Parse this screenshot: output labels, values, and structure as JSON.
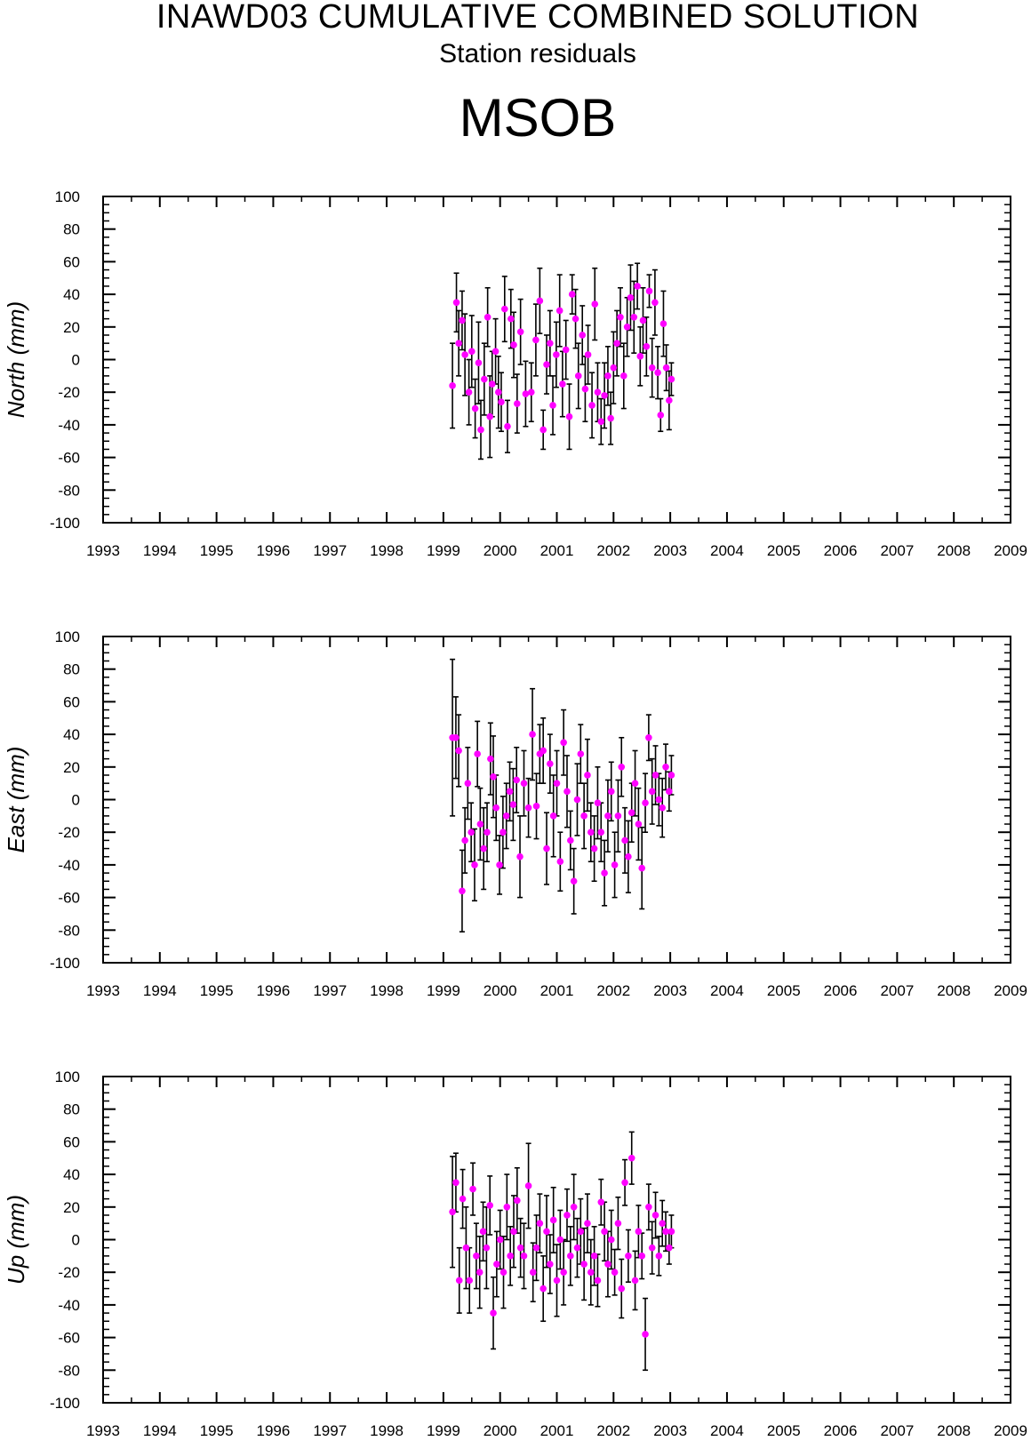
{
  "header": {
    "title": "INAWD03 CUMULATIVE COMBINED SOLUTION",
    "subtitle": "Station residuals",
    "station": "MSOB"
  },
  "colors": {
    "marker": "#ff00ff",
    "error_bar": "#000000",
    "axes": "#000000"
  },
  "chart_data": [
    {
      "type": "scatter",
      "ylabel": "North (mm)",
      "xlim": [
        1993,
        2009
      ],
      "ylim": [
        -100,
        100
      ],
      "xticks": [
        "1993",
        "1994",
        "1995",
        "1996",
        "1997",
        "1998",
        "1999",
        "2000",
        "2001",
        "2002",
        "2003",
        "2004",
        "2005",
        "2006",
        "2007",
        "2008",
        "2009"
      ],
      "yticks": [
        "-100",
        "-80",
        "-60",
        "-40",
        "-20",
        "0",
        "20",
        "40",
        "60",
        "80",
        "100"
      ],
      "series": [
        {
          "x": [
            1999.16,
            1999.23,
            1999.27,
            1999.33,
            1999.38,
            1999.45,
            1999.5,
            1999.56,
            1999.62,
            1999.66,
            1999.72,
            1999.78,
            1999.82,
            1999.86,
            1999.92,
            1999.97,
            2000.02,
            2000.08,
            2000.13,
            2000.19,
            2000.24,
            2000.3,
            2000.36,
            2000.45,
            2000.55,
            2000.63,
            2000.7,
            2000.76,
            2000.82,
            2000.88,
            2000.93,
            2000.99,
            2001.05,
            2001.1,
            2001.16,
            2001.22,
            2001.27,
            2001.33,
            2001.38,
            2001.45,
            2001.5,
            2001.55,
            2001.62,
            2001.67,
            2001.72,
            2001.78,
            2001.84,
            2001.9,
            2001.95,
            2002.0,
            2002.06,
            2002.12,
            2002.18,
            2002.24,
            2002.3,
            2002.36,
            2002.42,
            2002.47,
            2002.52,
            2002.58,
            2002.63,
            2002.68,
            2002.73,
            2002.78,
            2002.83,
            2002.88,
            2002.93,
            2002.98,
            2003.02
          ],
          "y": [
            -16,
            35,
            10,
            24,
            3,
            -20,
            5,
            -30,
            -2,
            -43,
            -12,
            26,
            -35,
            -15,
            5,
            -20,
            -26,
            31,
            -41,
            25,
            9,
            -27,
            17,
            -21,
            -20,
            12,
            36,
            -43,
            -3,
            10,
            -28,
            3,
            30,
            -15,
            6,
            -35,
            40,
            25,
            -10,
            15,
            -18,
            3,
            -28,
            34,
            -20,
            -38,
            -22,
            -10,
            -36,
            -5,
            10,
            26,
            -10,
            20,
            38,
            26,
            45,
            2,
            24,
            8,
            42,
            -5,
            35,
            -8,
            -34,
            22,
            -5,
            -25,
            -12
          ],
          "err": [
            26,
            18,
            20,
            18,
            25,
            20,
            22,
            18,
            25,
            18,
            22,
            18,
            25,
            20,
            20,
            22,
            18,
            20,
            16,
            18,
            20,
            18,
            20,
            20,
            18,
            22,
            20,
            12,
            18,
            20,
            18,
            20,
            22,
            20,
            18,
            20,
            12,
            18,
            20,
            18,
            20,
            18,
            20,
            22,
            18,
            14,
            20,
            18,
            16,
            22,
            20,
            18,
            20,
            18,
            20,
            22,
            14,
            18,
            20,
            18,
            10,
            18,
            20,
            16,
            10,
            20,
            14,
            18,
            10
          ]
        }
      ]
    },
    {
      "type": "scatter",
      "ylabel": "East (mm)",
      "xlim": [
        1993,
        2009
      ],
      "ylim": [
        -100,
        100
      ],
      "xticks": [
        "1993",
        "1994",
        "1995",
        "1996",
        "1997",
        "1998",
        "1999",
        "2000",
        "2001",
        "2002",
        "2003",
        "2004",
        "2005",
        "2006",
        "2007",
        "2008",
        "2009"
      ],
      "yticks": [
        "-100",
        "-80",
        "-60",
        "-40",
        "-20",
        "0",
        "20",
        "40",
        "60",
        "80",
        "100"
      ],
      "series": [
        {
          "x": [
            1999.16,
            1999.22,
            1999.27,
            1999.33,
            1999.38,
            1999.43,
            1999.49,
            1999.55,
            1999.6,
            1999.65,
            1999.71,
            1999.77,
            1999.83,
            1999.88,
            1999.93,
            1999.99,
            2000.05,
            2000.11,
            2000.17,
            2000.23,
            2000.29,
            2000.35,
            2000.42,
            2000.5,
            2000.57,
            2000.64,
            2000.7,
            2000.76,
            2000.82,
            2000.88,
            2000.94,
            2001.0,
            2001.06,
            2001.12,
            2001.18,
            2001.24,
            2001.3,
            2001.36,
            2001.42,
            2001.48,
            2001.54,
            2001.6,
            2001.66,
            2001.72,
            2001.78,
            2001.84,
            2001.9,
            2001.96,
            2002.02,
            2002.08,
            2002.14,
            2002.2,
            2002.26,
            2002.32,
            2002.38,
            2002.44,
            2002.5,
            2002.56,
            2002.62,
            2002.68,
            2002.74,
            2002.8,
            2002.86,
            2002.92,
            2002.98,
            2003.02
          ],
          "y": [
            38,
            38,
            30,
            -56,
            -25,
            10,
            -20,
            -40,
            28,
            -15,
            -30,
            -20,
            25,
            14,
            -5,
            -40,
            -20,
            -10,
            5,
            -3,
            12,
            -35,
            10,
            -5,
            40,
            -4,
            28,
            30,
            -30,
            22,
            -10,
            10,
            -38,
            35,
            5,
            -25,
            -50,
            0,
            28,
            -10,
            15,
            -20,
            -30,
            -2,
            -20,
            -45,
            -10,
            5,
            -40,
            -10,
            20,
            -25,
            -35,
            -8,
            10,
            -15,
            -42,
            -2,
            38,
            5,
            15,
            0,
            -5,
            20,
            5,
            15
          ],
          "err": [
            48,
            25,
            22,
            25,
            20,
            22,
            18,
            22,
            20,
            22,
            25,
            18,
            22,
            25,
            20,
            18,
            22,
            20,
            18,
            22,
            20,
            25,
            20,
            18,
            28,
            20,
            18,
            20,
            22,
            18,
            25,
            20,
            18,
            20,
            22,
            18,
            20,
            22,
            18,
            20,
            22,
            18,
            20,
            22,
            18,
            20,
            22,
            18,
            20,
            22,
            18,
            20,
            22,
            18,
            20,
            22,
            25,
            18,
            14,
            20,
            18,
            16,
            18,
            14,
            12,
            12
          ]
        }
      ]
    },
    {
      "type": "scatter",
      "ylabel": "Up (mm)",
      "xlim": [
        1993,
        2009
      ],
      "ylim": [
        -100,
        100
      ],
      "xticks": [
        "1993",
        "1994",
        "1995",
        "1996",
        "1997",
        "1998",
        "1999",
        "2000",
        "2001",
        "2002",
        "2003",
        "2004",
        "2005",
        "2006",
        "2007",
        "2008",
        "2009"
      ],
      "yticks": [
        "-100",
        "-80",
        "-60",
        "-40",
        "-20",
        "0",
        "20",
        "40",
        "60",
        "80",
        "100"
      ],
      "series": [
        {
          "x": [
            1999.16,
            1999.22,
            1999.28,
            1999.34,
            1999.4,
            1999.46,
            1999.52,
            1999.58,
            1999.64,
            1999.7,
            1999.76,
            1999.82,
            1999.88,
            1999.94,
            2000.0,
            2000.06,
            2000.12,
            2000.18,
            2000.24,
            2000.3,
            2000.36,
            2000.42,
            2000.5,
            2000.58,
            2000.64,
            2000.7,
            2000.76,
            2000.82,
            2000.88,
            2000.94,
            2001.0,
            2001.06,
            2001.12,
            2001.18,
            2001.24,
            2001.3,
            2001.36,
            2001.42,
            2001.48,
            2001.54,
            2001.6,
            2001.66,
            2001.72,
            2001.78,
            2001.84,
            2001.9,
            2001.96,
            2002.02,
            2002.08,
            2002.14,
            2002.2,
            2002.26,
            2002.32,
            2002.38,
            2002.44,
            2002.5,
            2002.56,
            2002.62,
            2002.68,
            2002.74,
            2002.8,
            2002.86,
            2002.92,
            2002.98,
            2003.02
          ],
          "y": [
            17,
            35,
            -25,
            25,
            -5,
            -25,
            31,
            -10,
            -20,
            5,
            -5,
            21,
            -45,
            -15,
            0,
            -20,
            20,
            -10,
            5,
            24,
            -5,
            -10,
            33,
            -20,
            -5,
            10,
            -30,
            5,
            -15,
            12,
            -25,
            0,
            -20,
            15,
            -10,
            20,
            -5,
            5,
            -15,
            10,
            -20,
            -10,
            -25,
            23,
            5,
            -15,
            0,
            -20,
            10,
            -30,
            35,
            -10,
            50,
            -25,
            5,
            -10,
            -58,
            20,
            -5,
            15,
            -10,
            10,
            5,
            -5,
            5
          ],
          "err": [
            34,
            18,
            20,
            18,
            25,
            20,
            16,
            20,
            22,
            18,
            25,
            18,
            22,
            20,
            18,
            22,
            20,
            18,
            22,
            20,
            18,
            20,
            26,
            18,
            20,
            18,
            20,
            22,
            18,
            20,
            22,
            18,
            20,
            16,
            18,
            20,
            18,
            20,
            22,
            18,
            20,
            18,
            16,
            14,
            18,
            20,
            18,
            14,
            16,
            18,
            14,
            16,
            16,
            18,
            16,
            14,
            22,
            14,
            16,
            14,
            12,
            14,
            12,
            10,
            10
          ]
        }
      ]
    }
  ]
}
